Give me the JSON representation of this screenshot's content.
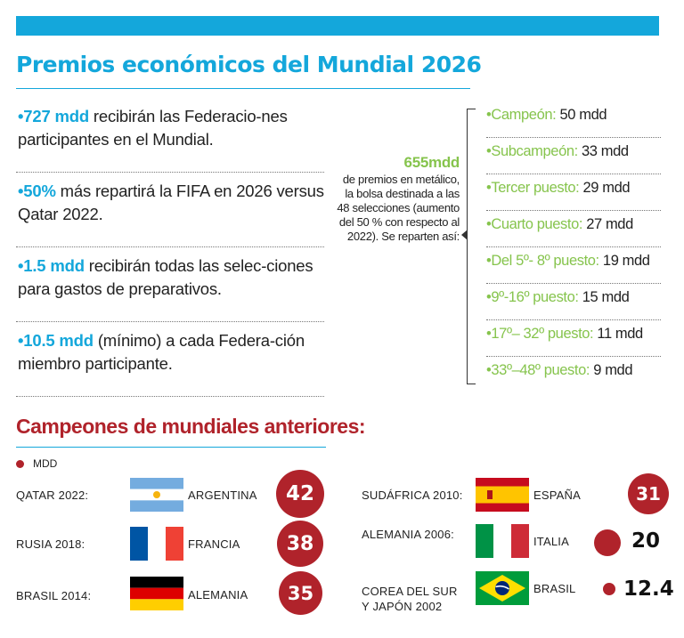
{
  "colors": {
    "accent": "#14a7db",
    "green": "#86c44d",
    "red": "#b0232b"
  },
  "title": "Premios económicos del Mundial 2026",
  "facts": [
    {
      "highlight": "727 mdd",
      "text": " recibirán las Federacio-nes participantes en el Mundial."
    },
    {
      "highlight": "50%",
      "text": " más repartirá la FIFA en 2026 versus Qatar 2022."
    },
    {
      "highlight": "1.5 mdd",
      "text": " recibirán todas las selec-ciones para gastos de preparativos."
    },
    {
      "highlight": "10.5 mdd",
      "text": " (mínimo) a cada Federa-ción miembro participante."
    }
  ],
  "pool": {
    "amount": "655mdd",
    "description": "de premios en metálico, la bolsa destinada a las 48 selecciones (aumento del 50 % con respecto al 2022). Se reparten así:"
  },
  "prizes": [
    {
      "label": "Campeón:",
      "value": "50 mdd"
    },
    {
      "label": "Subcampeón:",
      "value": "33 mdd"
    },
    {
      "label": "Tercer puesto:",
      "value": "29 mdd"
    },
    {
      "label": "Cuarto puesto:",
      "value": "27 mdd"
    },
    {
      "label": "Del 5º- 8º puesto:",
      "value": "19 mdd"
    },
    {
      "label": "9º-16º puesto:",
      "value": "15 mdd"
    },
    {
      "label": "17º– 32º puesto:",
      "value": "11 mdd"
    },
    {
      "label": "33º–48º puesto:",
      "value": "9 mdd"
    }
  ],
  "champions_title": "Campeones de mundiales anteriores:",
  "legend_label": "MDD",
  "champions": [
    {
      "year": "QATAR 2022:",
      "country": "ARGENTINA",
      "value": 42,
      "value_label": "42",
      "flag": "argentina-flag"
    },
    {
      "year": "RUSIA 2018:",
      "country": "FRANCIA",
      "value": 38,
      "value_label": "38",
      "flag": "france-flag"
    },
    {
      "year": "BRASIL 2014:",
      "country": "ALEMANIA",
      "value": 35,
      "value_label": "35",
      "flag": "germany-flag"
    },
    {
      "year": "SUDÁFRICA 2010:",
      "country": "ESPAÑA",
      "value": 31,
      "value_label": "31",
      "flag": "spain-flag"
    },
    {
      "year": "ALEMANIA 2006:",
      "country": "ITALIA",
      "value": 20,
      "value_label": "20",
      "flag": "italy-flag"
    },
    {
      "year": "COREA DEL SUR Y JAPÓN 2002",
      "country": "BRASIL",
      "value": 12.4,
      "value_label": "12.4",
      "flag": "brazil-flag"
    }
  ]
}
